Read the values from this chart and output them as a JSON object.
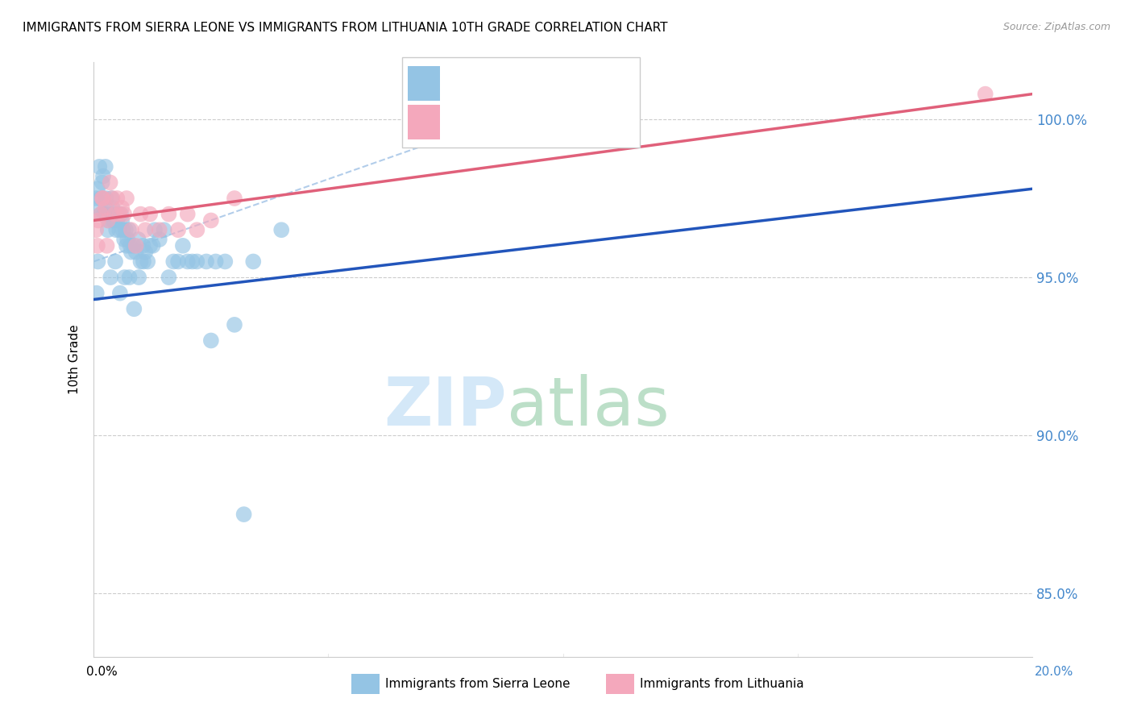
{
  "title": "IMMIGRANTS FROM SIERRA LEONE VS IMMIGRANTS FROM LITHUANIA 10TH GRADE CORRELATION CHART",
  "source": "Source: ZipAtlas.com",
  "ylabel": "10th Grade",
  "yticks": [
    100.0,
    95.0,
    90.0,
    85.0
  ],
  "ytick_labels": [
    "100.0%",
    "95.0%",
    "90.0%",
    "85.0%"
  ],
  "xmin": 0.0,
  "xmax": 20.0,
  "ymin": 83.0,
  "ymax": 101.8,
  "legend_label1": "Immigrants from Sierra Leone",
  "legend_label2": "Immigrants from Lithuania",
  "color_sierra": "#94C4E4",
  "color_lithuania": "#F4A8BC",
  "color_trendline_sierra": "#2255BB",
  "color_trendline_lithuania": "#E0607A",
  "color_dashed": "#AAC8E8",
  "sl_trend_x0": 0.0,
  "sl_trend_y0": 94.3,
  "sl_trend_x1": 20.0,
  "sl_trend_y1": 97.8,
  "lt_trend_x0": 0.0,
  "lt_trend_y0": 96.8,
  "lt_trend_x1": 20.0,
  "lt_trend_y1": 100.8,
  "dash_x0": 0.0,
  "dash_y0": 95.5,
  "dash_x1": 11.5,
  "dash_y1": 101.5,
  "sierra_leone_x": [
    0.05,
    0.08,
    0.1,
    0.12,
    0.15,
    0.18,
    0.2,
    0.22,
    0.25,
    0.28,
    0.3,
    0.32,
    0.35,
    0.38,
    0.4,
    0.42,
    0.45,
    0.48,
    0.5,
    0.52,
    0.55,
    0.58,
    0.6,
    0.62,
    0.65,
    0.68,
    0.7,
    0.72,
    0.75,
    0.78,
    0.8,
    0.85,
    0.9,
    0.95,
    1.0,
    1.05,
    1.1,
    1.15,
    1.2,
    1.3,
    1.4,
    1.5,
    1.6,
    1.7,
    1.8,
    1.9,
    2.0,
    2.1,
    2.2,
    2.4,
    2.6,
    2.8,
    3.0,
    3.4,
    4.0,
    0.06,
    0.09,
    0.16,
    0.26,
    0.36,
    0.46,
    0.56,
    0.66,
    0.76,
    0.86,
    0.96,
    1.06,
    1.26,
    2.5,
    3.2
  ],
  "sierra_leone_y": [
    97.5,
    97.8,
    97.2,
    98.5,
    97.5,
    98.0,
    98.2,
    97.0,
    98.5,
    97.0,
    96.5,
    96.8,
    97.0,
    97.5,
    97.2,
    96.8,
    97.0,
    96.5,
    96.8,
    97.0,
    96.5,
    97.0,
    96.8,
    96.5,
    96.2,
    96.5,
    96.0,
    96.2,
    96.5,
    96.0,
    95.8,
    96.0,
    95.8,
    96.2,
    95.5,
    96.0,
    95.8,
    95.5,
    96.0,
    96.5,
    96.2,
    96.5,
    95.0,
    95.5,
    95.5,
    96.0,
    95.5,
    95.5,
    95.5,
    95.5,
    95.5,
    95.5,
    93.5,
    95.5,
    96.5,
    94.5,
    95.5,
    97.0,
    97.5,
    95.0,
    95.5,
    94.5,
    95.0,
    95.0,
    94.0,
    95.0,
    95.5,
    96.0,
    93.0,
    87.5
  ],
  "lithuania_x": [
    0.05,
    0.1,
    0.15,
    0.2,
    0.25,
    0.3,
    0.35,
    0.4,
    0.45,
    0.5,
    0.55,
    0.6,
    0.65,
    0.7,
    0.8,
    0.9,
    1.0,
    1.1,
    1.2,
    1.4,
    1.6,
    1.8,
    2.0,
    2.2,
    2.5,
    3.0,
    0.08,
    0.18,
    0.28,
    19.0
  ],
  "lithuania_y": [
    96.5,
    96.8,
    97.0,
    97.5,
    97.2,
    96.8,
    98.0,
    97.5,
    97.0,
    97.5,
    97.0,
    97.2,
    97.0,
    97.5,
    96.5,
    96.0,
    97.0,
    96.5,
    97.0,
    96.5,
    97.0,
    96.5,
    97.0,
    96.5,
    96.8,
    97.5,
    96.0,
    97.5,
    96.0,
    100.8
  ]
}
